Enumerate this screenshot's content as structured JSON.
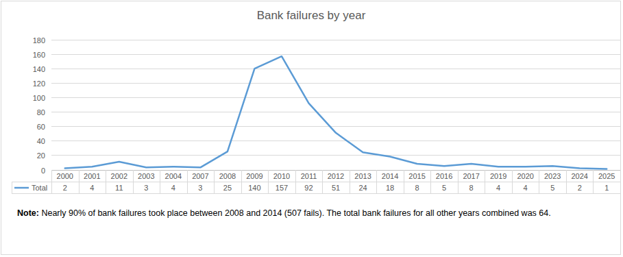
{
  "chart_data": {
    "type": "line",
    "title": "Bank failures by year",
    "categories": [
      "2000",
      "2001",
      "2002",
      "2003",
      "2004",
      "2007",
      "2008",
      "2009",
      "2010",
      "2011",
      "2012",
      "2013",
      "2014",
      "2015",
      "2016",
      "2017",
      "2019",
      "2020",
      "2023",
      "2024",
      "2025"
    ],
    "series": [
      {
        "name": "Total",
        "color": "#5b9bd5",
        "values": [
          2,
          4,
          11,
          3,
          4,
          3,
          25,
          140,
          157,
          92,
          51,
          24,
          18,
          8,
          5,
          8,
          4,
          4,
          5,
          2,
          1
        ]
      }
    ],
    "ylim": [
      0,
      180
    ],
    "yticks": [
      0,
      20,
      40,
      60,
      80,
      100,
      120,
      140,
      160,
      180
    ],
    "grid": true,
    "data_labels": true,
    "annotations": [
      "Note:",
      "Nearly 90% of bank failures took place between 2008 and 2014 (507 fails). The total bank failures for all other years combined was 64."
    ]
  }
}
